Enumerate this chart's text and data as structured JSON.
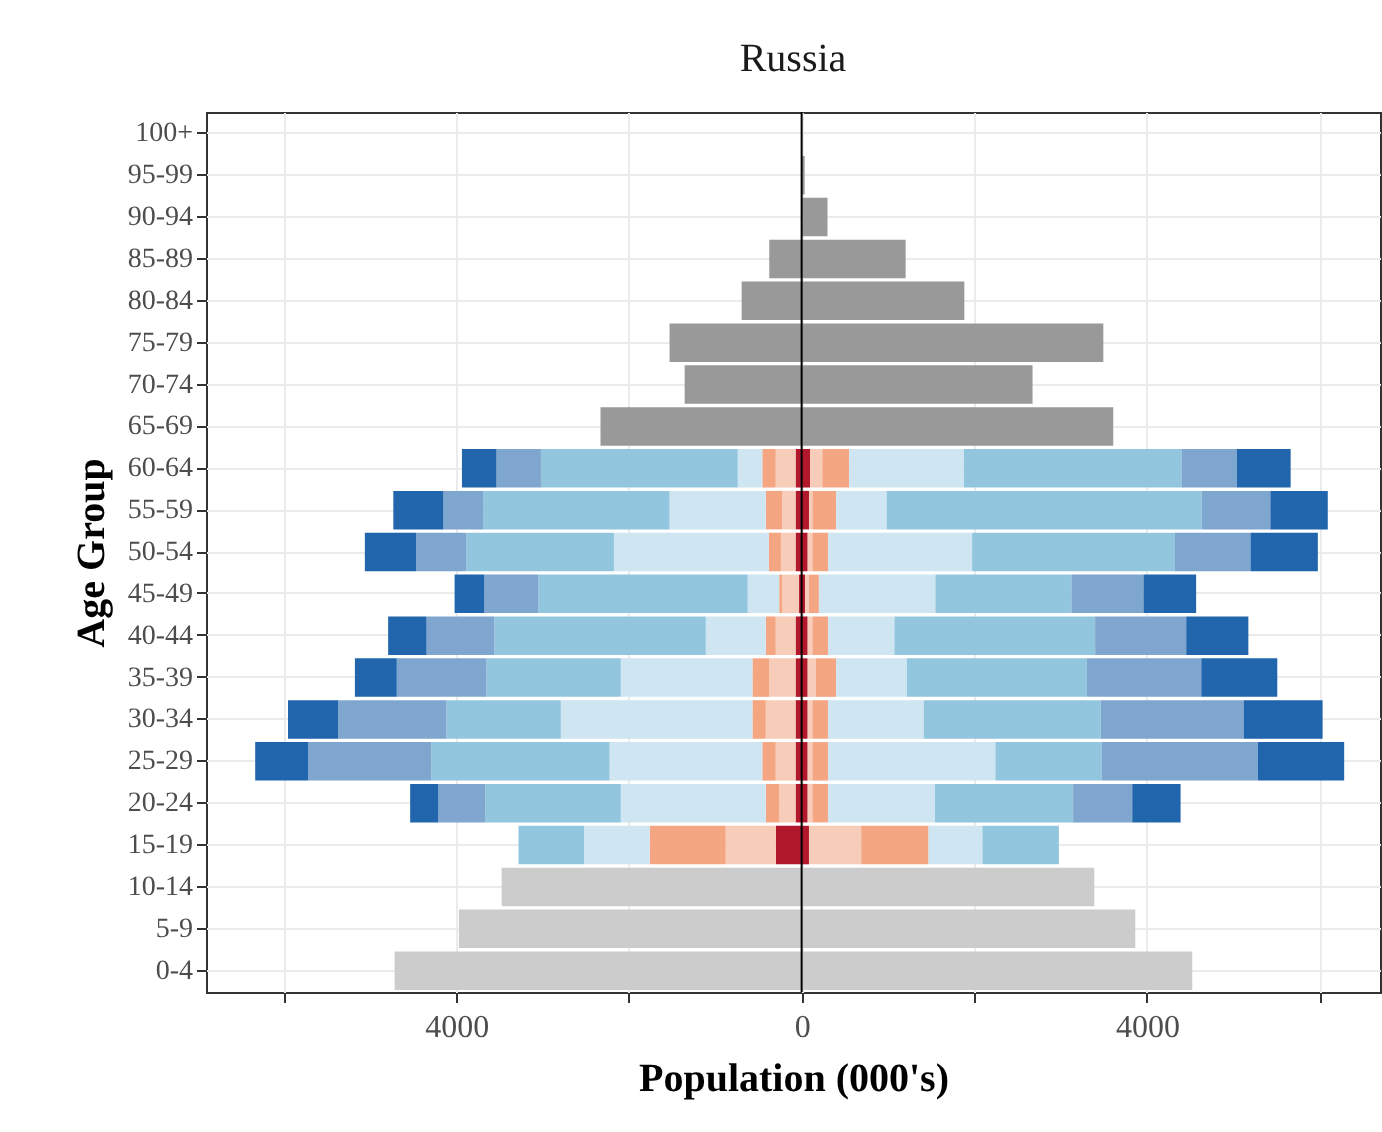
{
  "chart_data": {
    "type": "bar",
    "orientation": "horizontal",
    "stacked": true,
    "title": "Russia",
    "xlabel": "Population (000's)",
    "ylabel": "Age Group",
    "categories": [
      "100+",
      "95-99",
      "90-94",
      "85-89",
      "80-84",
      "75-79",
      "70-74",
      "65-69",
      "60-64",
      "55-59",
      "50-54",
      "45-49",
      "40-44",
      "35-39",
      "30-34",
      "25-29",
      "20-24",
      "15-19",
      "10-14",
      "5-9",
      "0-4"
    ],
    "series": [
      {
        "color": "#999999",
        "values": [
          null,
          null,
          null,
          -375,
          -695,
          -1530,
          -1355,
          -2330,
          null,
          null,
          null,
          null,
          null,
          null,
          null,
          null,
          null,
          null,
          null,
          null,
          null
        ]
      },
      {
        "color": "#999999",
        "values": [
          null,
          35,
          300,
          1205,
          1885,
          3495,
          2675,
          3610,
          null,
          null,
          null,
          null,
          null,
          null,
          null,
          null,
          null,
          null,
          null,
          null,
          null
        ]
      },
      {
        "color": "#cccccc",
        "values": [
          null,
          null,
          null,
          null,
          null,
          null,
          null,
          null,
          null,
          null,
          null,
          null,
          null,
          null,
          null,
          null,
          null,
          null,
          -3475,
          -3970,
          -4715
        ]
      },
      {
        "color": "#cccccc",
        "values": [
          null,
          null,
          null,
          null,
          null,
          null,
          null,
          null,
          null,
          null,
          null,
          null,
          null,
          null,
          null,
          null,
          null,
          null,
          3390,
          3865,
          4525
        ]
      },
      {
        "color": "#b2182b",
        "values": [
          null,
          null,
          null,
          null,
          null,
          null,
          null,
          null,
          -70,
          -70,
          -70,
          -30,
          -70,
          -70,
          -70,
          -70,
          -70,
          -300,
          null,
          null,
          null
        ]
      },
      {
        "color": "#b2182b",
        "values": [
          null,
          null,
          null,
          null,
          null,
          null,
          null,
          null,
          100,
          85,
          70,
          40,
          70,
          70,
          70,
          70,
          70,
          85,
          null,
          null,
          null
        ]
      },
      {
        "color": "#f7cdb9",
        "values": [
          null,
          null,
          null,
          null,
          null,
          null,
          null,
          null,
          -230,
          -155,
          -170,
          -195,
          -230,
          -305,
          -345,
          -230,
          -190,
          -580,
          null,
          null,
          null
        ]
      },
      {
        "color": "#f7cdb9",
        "values": [
          null,
          null,
          null,
          null,
          null,
          null,
          null,
          null,
          140,
          40,
          55,
          45,
          55,
          95,
          55,
          55,
          55,
          605,
          null,
          null,
          null
        ]
      },
      {
        "color": "#f4a582",
        "values": [
          null,
          null,
          null,
          null,
          null,
          null,
          null,
          null,
          -155,
          -190,
          -140,
          -35,
          -115,
          -195,
          -155,
          -155,
          -155,
          -880,
          null,
          null,
          null
        ]
      },
      {
        "color": "#f4a582",
        "values": [
          null,
          null,
          null,
          null,
          null,
          null,
          null,
          null,
          310,
          275,
          180,
          115,
          180,
          235,
          180,
          180,
          180,
          780,
          null,
          null,
          null
        ]
      },
      {
        "color": "#cfe5f1",
        "values": [
          null,
          null,
          null,
          null,
          null,
          null,
          null,
          null,
          -285,
          -1115,
          -1795,
          -365,
          -695,
          -1525,
          -2220,
          -1770,
          -1680,
          -760,
          null,
          null,
          null
        ]
      },
      {
        "color": "#cfe5f1",
        "values": [
          null,
          null,
          null,
          null,
          null,
          null,
          null,
          null,
          1330,
          585,
          1670,
          1350,
          770,
          820,
          1110,
          1940,
          1240,
          625,
          null,
          null,
          null
        ]
      },
      {
        "color": "#92c5de",
        "values": [
          null,
          null,
          null,
          null,
          null,
          null,
          null,
          null,
          -2280,
          -2160,
          -1710,
          -2425,
          -2450,
          -1555,
          -1325,
          -2065,
          -1570,
          -760,
          null,
          null,
          null
        ]
      },
      {
        "color": "#92c5de",
        "values": [
          null,
          null,
          null,
          null,
          null,
          null,
          null,
          null,
          2520,
          3650,
          2350,
          1575,
          2325,
          2085,
          2050,
          1230,
          1600,
          885,
          null,
          null,
          null
        ]
      },
      {
        "color": "#7fa6cf",
        "values": [
          null,
          null,
          null,
          null,
          null,
          null,
          null,
          null,
          -515,
          -460,
          -580,
          -625,
          -785,
          -1040,
          -1255,
          -1425,
          -545,
          null,
          null,
          null,
          null
        ]
      },
      {
        "color": "#7fa6cf",
        "values": [
          null,
          null,
          null,
          null,
          null,
          null,
          null,
          null,
          640,
          795,
          875,
          835,
          1055,
          1325,
          1655,
          1810,
          685,
          null,
          null,
          null,
          null
        ]
      },
      {
        "color": "#2166ac",
        "values": [
          null,
          null,
          null,
          null,
          null,
          null,
          null,
          null,
          -400,
          -580,
          -595,
          -345,
          -445,
          -485,
          -580,
          -615,
          -325,
          null,
          null,
          null,
          null
        ]
      },
      {
        "color": "#2166ac",
        "values": [
          null,
          null,
          null,
          null,
          null,
          null,
          null,
          null,
          625,
          665,
          780,
          610,
          720,
          880,
          915,
          1000,
          560,
          null,
          null,
          null,
          null
        ]
      }
    ],
    "xlim": [
      -6900,
      6700
    ],
    "xticks": [
      {
        "value": -6000,
        "label": null
      },
      {
        "value": -4000,
        "label": "4000"
      },
      {
        "value": -2000,
        "label": null
      },
      0,
      {
        "value": 2000,
        "label": null
      },
      4000,
      {
        "value": 6000,
        "label": null
      }
    ],
    "ref_lines": [
      {
        "axis": "x",
        "value": 0,
        "color": "#000000"
      }
    ],
    "grid": true
  }
}
